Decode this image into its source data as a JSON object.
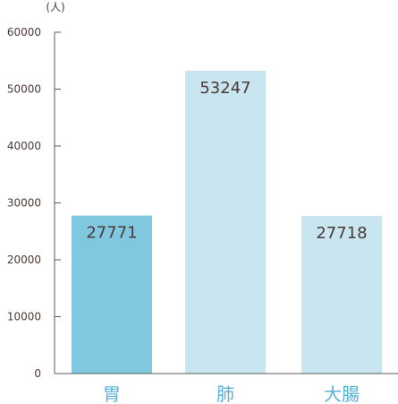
{
  "chart_data": {
    "type": "bar",
    "title": "",
    "xlabel": "",
    "ylabel": "",
    "y_unit_label": "(人)",
    "categories": [
      "胃",
      "肺",
      "大腸"
    ],
    "values": [
      27771,
      53247,
      27718
    ],
    "value_labels": [
      "27771",
      "53247",
      "27718"
    ],
    "ylim": [
      0,
      60000
    ],
    "y_ticks": [
      0,
      10000,
      20000,
      30000,
      40000,
      50000,
      60000
    ],
    "y_tick_labels": [
      "0",
      "10000",
      "20000",
      "30000",
      "40000",
      "50000",
      "60000"
    ],
    "grid": false,
    "legend": "none"
  },
  "colors": {
    "bar_highlight": "#80c8e0",
    "bar_default": "#c8e5f0",
    "axis": "#5a5a5a",
    "text": "#4a3a36",
    "category_text": "#5ab3d4"
  }
}
